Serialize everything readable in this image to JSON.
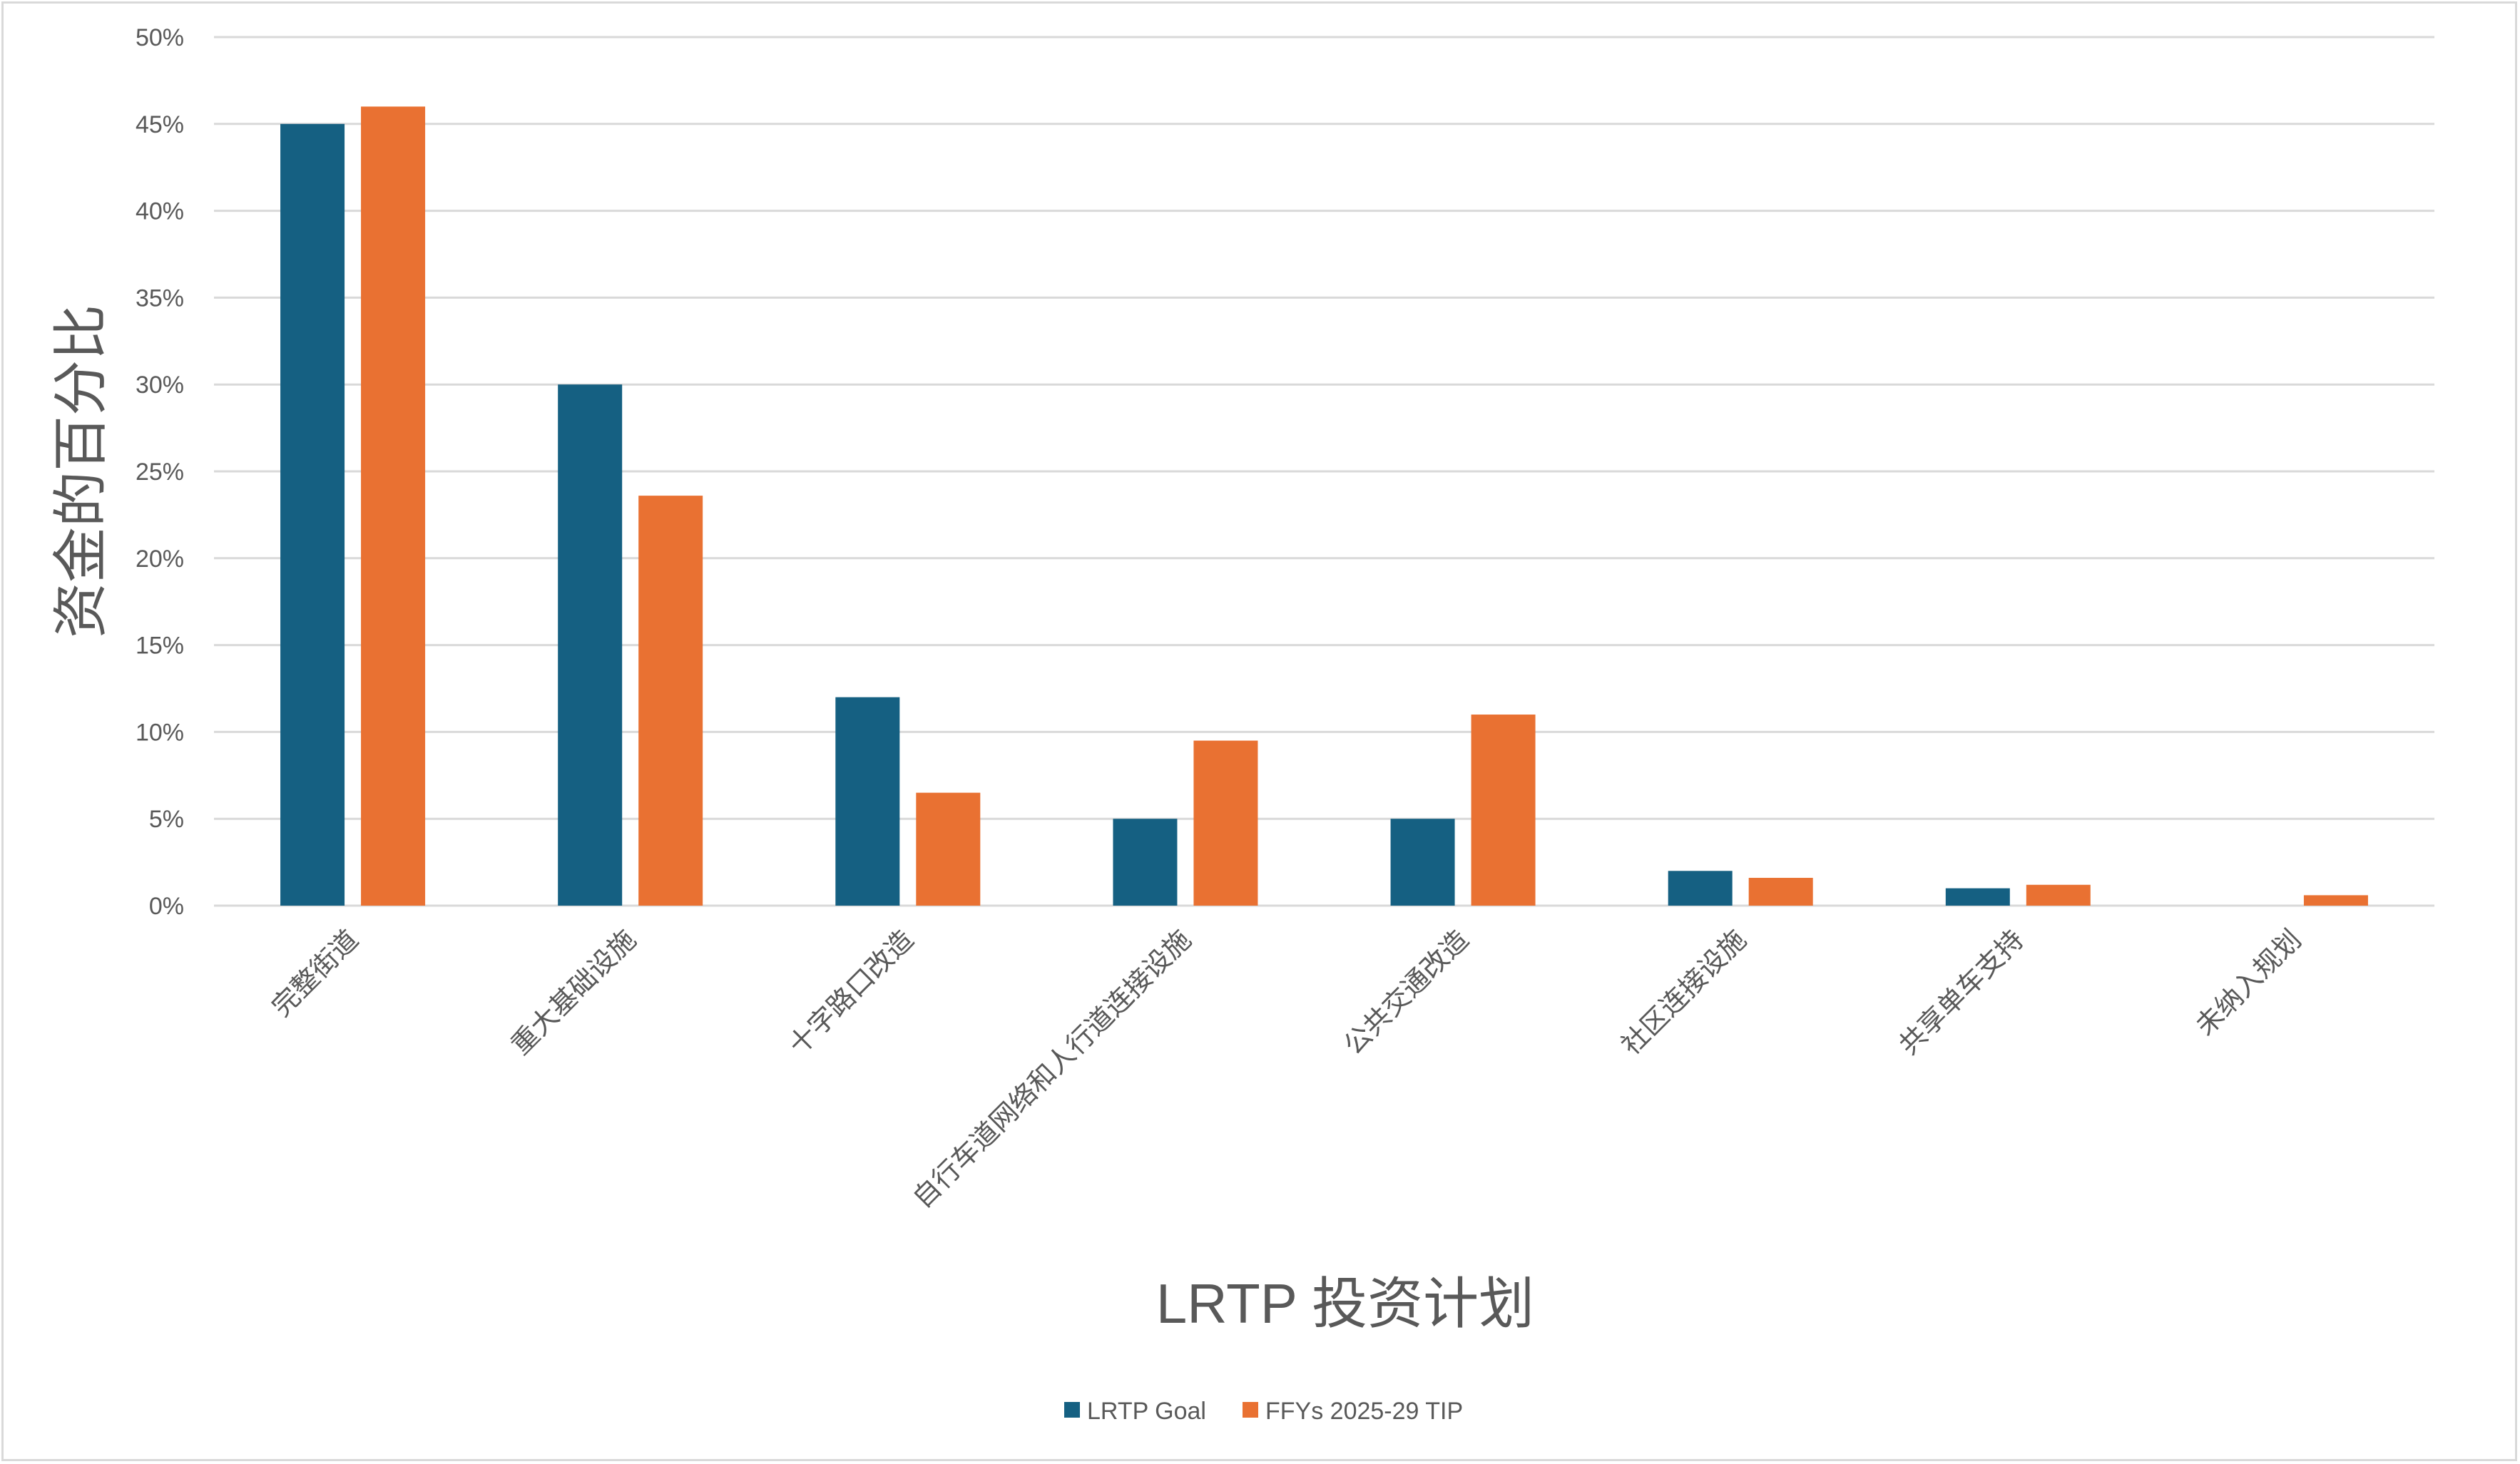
{
  "chart_data": {
    "type": "bar",
    "title": "",
    "xlabel": "LRTP 投资计划",
    "ylabel": "资金的百分比",
    "ylim": [
      0,
      50
    ],
    "yticks": [
      "0%",
      "5%",
      "10%",
      "15%",
      "20%",
      "25%",
      "30%",
      "35%",
      "40%",
      "45%",
      "50%"
    ],
    "grid": true,
    "legend_placement": "bottom",
    "categories": [
      "完整街道",
      "重大基础设施",
      "十字路口改造",
      "自行车道网络和人行道连接设施",
      "公共交通改造",
      "社区连接设施",
      "共享单车支持",
      "未纳入规划"
    ],
    "series": [
      {
        "name": "LRTP Goal",
        "color": "#156082",
        "values": [
          45,
          30,
          12,
          5,
          5,
          2,
          1,
          0
        ]
      },
      {
        "name": "FFYs 2025-29 TIP",
        "color": "#E97132",
        "values": [
          46,
          23.6,
          6.5,
          9.5,
          11,
          1.6,
          1.2,
          0.6
        ]
      }
    ]
  }
}
